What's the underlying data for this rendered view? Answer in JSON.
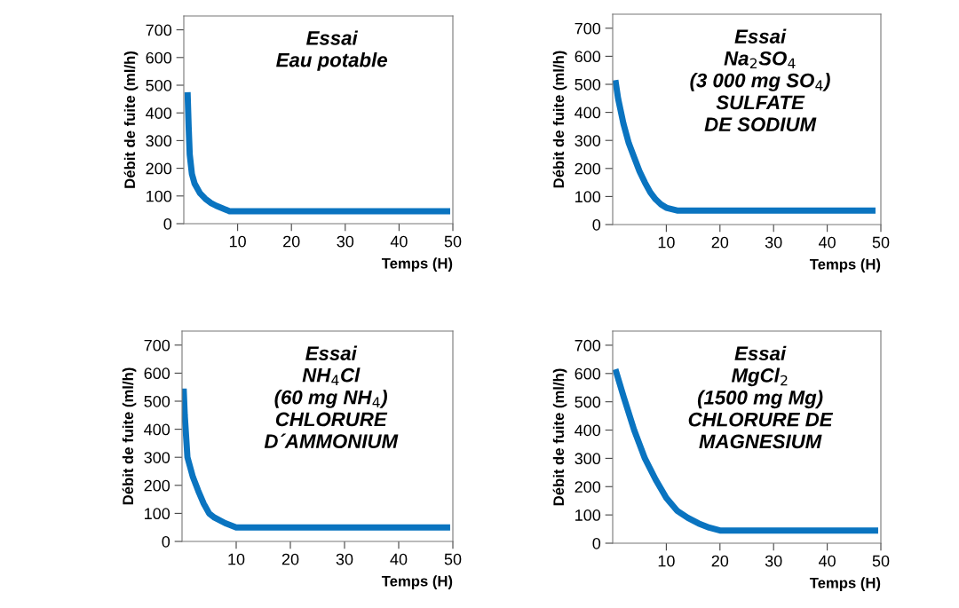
{
  "chart_data": [
    {
      "type": "line",
      "xlabel": "Temps (H)",
      "ylabel": "Débit de fuite (ml/h)",
      "xlim": [
        0,
        50
      ],
      "ylim": [
        0,
        750
      ],
      "xticks": [
        10,
        20,
        30,
        40,
        50
      ],
      "yticks": [
        0,
        100,
        200,
        300,
        400,
        500,
        600,
        700
      ],
      "grid": false,
      "legend": false,
      "annotations": [
        "Essai\nEau potable"
      ],
      "series": [
        {
          "color": "#0a74c0",
          "x": [
            0.7,
            0.9,
            1.1,
            1.5,
            2,
            3,
            4,
            5,
            6,
            7,
            8.5,
            49.5
          ],
          "values": [
            475,
            350,
            250,
            180,
            145,
            110,
            90,
            75,
            65,
            57,
            45,
            45
          ]
        }
      ]
    },
    {
      "type": "line",
      "xlabel": "Temps (H)",
      "ylabel": "Débit de fuite (ml/h)",
      "xlim": [
        0,
        50
      ],
      "ylim": [
        0,
        750
      ],
      "xticks": [
        10,
        20,
        30,
        40,
        50
      ],
      "yticks": [
        0,
        100,
        200,
        300,
        400,
        500,
        600,
        700
      ],
      "grid": false,
      "legend": false,
      "annotations": [
        "Essai\nNa$_{2}$SO$_{4}$\n(3 000 mg SO$_{4}$)\nSULFATE\nDE SODIUM"
      ],
      "series": [
        {
          "color": "#0a74c0",
          "x": [
            0.5,
            1,
            2,
            3,
            4,
            5,
            6,
            7,
            8,
            9,
            10,
            12,
            49
          ],
          "values": [
            515,
            450,
            360,
            290,
            240,
            190,
            150,
            115,
            90,
            72,
            60,
            50,
            50
          ]
        }
      ]
    },
    {
      "type": "line",
      "xlabel": "Temps (H)",
      "ylabel": "Débit de fuite (ml/h)",
      "xlim": [
        0,
        50
      ],
      "ylim": [
        0,
        750
      ],
      "xticks": [
        10,
        20,
        30,
        40,
        50
      ],
      "yticks": [
        0,
        100,
        200,
        300,
        400,
        500,
        600,
        700
      ],
      "grid": false,
      "legend": false,
      "annotations": [
        "Essai\nNH$_{4}$Cl\n(60 mg NH$_{4}$)\nCHLORURE\nD´AMMONIUM"
      ],
      "series": [
        {
          "color": "#0a74c0",
          "x": [
            0.3,
            0.5,
            1,
            2,
            3,
            4,
            5,
            6,
            8,
            10,
            49.5
          ],
          "values": [
            545,
            450,
            300,
            230,
            180,
            135,
            100,
            85,
            65,
            50,
            50
          ]
        }
      ]
    },
    {
      "type": "line",
      "xlabel": "Temps (H)",
      "ylabel": "Débit de fuite (ml/h)",
      "xlim": [
        0,
        50
      ],
      "ylim": [
        0,
        750
      ],
      "xticks": [
        10,
        20,
        30,
        40,
        50
      ],
      "yticks": [
        0,
        100,
        200,
        300,
        400,
        500,
        600,
        700
      ],
      "grid": false,
      "legend": false,
      "annotations": [
        "Essai\nMgCl$_{2}$\n(1500 mg Mg)\nCHLORURE DE\nMAGNESIUM"
      ],
      "series": [
        {
          "color": "#0a74c0",
          "x": [
            0.5,
            2,
            4,
            6,
            8,
            10,
            12,
            14,
            16,
            18,
            20,
            49.5
          ],
          "values": [
            615,
            520,
            400,
            300,
            225,
            160,
            115,
            90,
            70,
            55,
            45,
            45
          ]
        }
      ]
    }
  ]
}
